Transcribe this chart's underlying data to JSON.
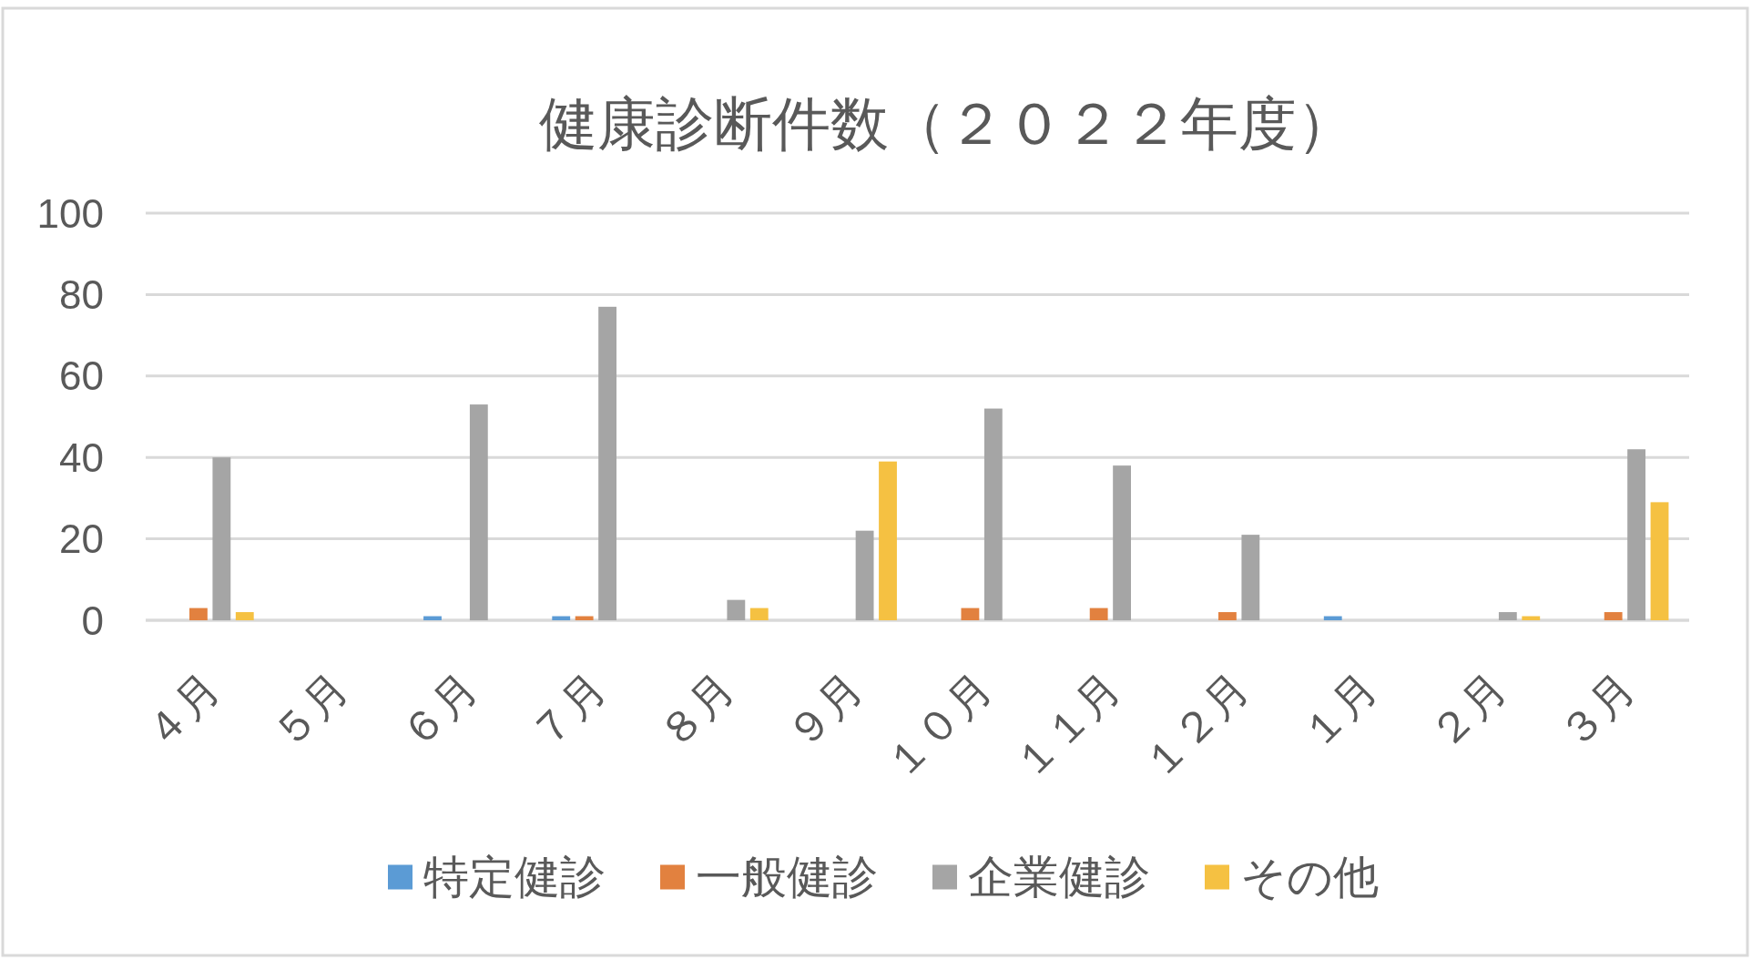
{
  "chart_data": {
    "type": "bar",
    "title": "健康診断件数（２０２２年度）",
    "categories": [
      "４月",
      "５月",
      "６月",
      "７月",
      "８月",
      "９月",
      "１０月",
      "１１月",
      "１２月",
      "１月",
      "２月",
      "３月"
    ],
    "series": [
      {
        "name": "特定健診",
        "color": "#5b9bd5",
        "values": [
          null,
          null,
          1,
          1,
          null,
          null,
          null,
          null,
          null,
          1,
          null,
          null
        ]
      },
      {
        "name": "一般健診",
        "color": "#e2813f",
        "values": [
          3,
          null,
          null,
          1,
          null,
          null,
          3,
          3,
          2,
          null,
          null,
          2
        ]
      },
      {
        "name": "企業健診",
        "color": "#a5a5a5",
        "values": [
          40,
          null,
          53,
          77,
          5,
          22,
          52,
          38,
          21,
          null,
          2,
          42
        ]
      },
      {
        "name": "その他",
        "color": "#f5c142",
        "values": [
          2,
          null,
          null,
          null,
          3,
          39,
          null,
          null,
          null,
          null,
          1,
          29
        ]
      }
    ],
    "ylim": [
      0,
      100
    ],
    "yticks": [
      0,
      20,
      40,
      60,
      80,
      100
    ],
    "grid": "y",
    "legend": "bottom"
  }
}
